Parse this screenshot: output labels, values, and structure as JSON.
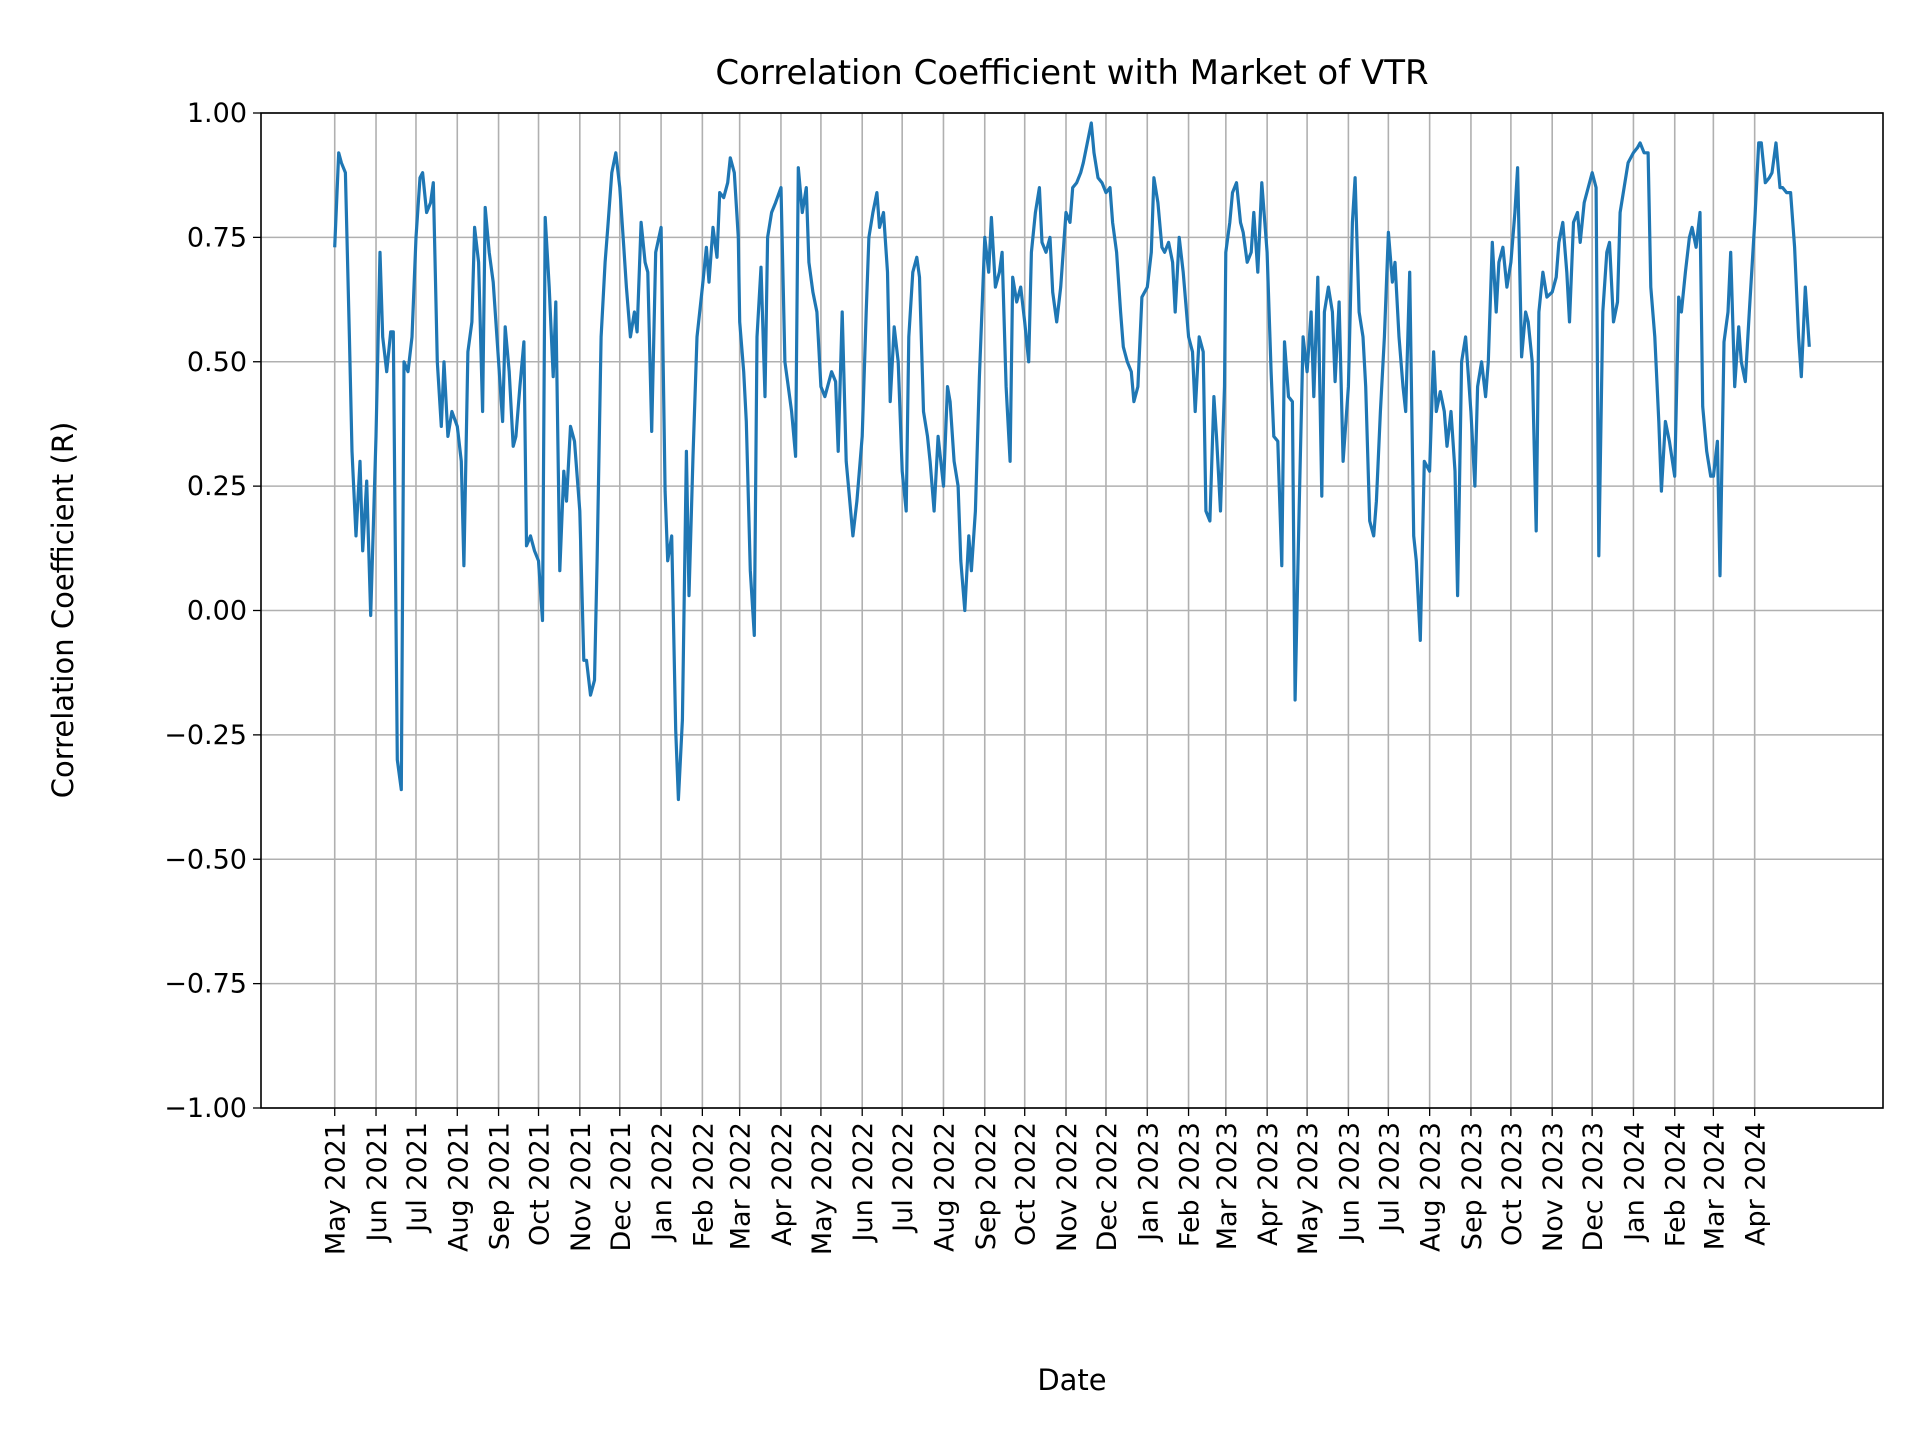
{
  "chart_data": {
    "type": "line",
    "title": "Correlation Coefficient with Market of VTR",
    "xlabel": "Date",
    "ylabel": "Correlation Coefficient (R)",
    "ylim": [
      -1.0,
      1.0
    ],
    "grid": true,
    "line_color": "#1f77b4",
    "y_ticks": [
      -1.0,
      -0.75,
      -0.5,
      -0.25,
      0.0,
      0.25,
      0.5,
      0.75,
      1.0
    ],
    "y_tick_labels": [
      "−1.00",
      "−0.75",
      "−0.50",
      "−0.25",
      "0.00",
      "0.25",
      "0.50",
      "0.75",
      "1.00"
    ],
    "x_ticks": [
      "2021-05-01",
      "2021-06-01",
      "2021-07-01",
      "2021-08-01",
      "2021-09-01",
      "2021-10-01",
      "2021-11-01",
      "2021-12-01",
      "2022-01-01",
      "2022-02-01",
      "2022-03-01",
      "2022-04-01",
      "2022-05-01",
      "2022-06-01",
      "2022-07-01",
      "2022-08-01",
      "2022-09-01",
      "2022-10-01",
      "2022-11-01",
      "2022-12-01",
      "2023-01-01",
      "2023-02-01",
      "2023-03-01",
      "2023-04-01",
      "2023-05-01",
      "2023-06-01",
      "2023-07-01",
      "2023-08-01",
      "2023-09-01",
      "2023-10-01",
      "2023-11-01",
      "2023-12-01",
      "2024-01-01",
      "2024-02-01",
      "2024-03-01",
      "2024-04-01"
    ],
    "x_tick_labels": [
      "May 2021",
      "Jun 2021",
      "Jul 2021",
      "Aug 2021",
      "Sep 2021",
      "Oct 2021",
      "Nov 2021",
      "Dec 2021",
      "Jan 2022",
      "Feb 2022",
      "Mar 2022",
      "Apr 2022",
      "May 2022",
      "Jun 2022",
      "Jul 2022",
      "Aug 2022",
      "Sep 2022",
      "Oct 2022",
      "Nov 2022",
      "Dec 2022",
      "Jan 2023",
      "Feb 2023",
      "Mar 2023",
      "Apr 2023",
      "May 2023",
      "Jun 2023",
      "Jul 2023",
      "Aug 2023",
      "Sep 2023",
      "Oct 2023",
      "Nov 2023",
      "Dec 2023",
      "Jan 2024",
      "Feb 2024",
      "Mar 2024",
      "Apr 2024"
    ],
    "series": [
      {
        "x": [
          "2021-05-01",
          "2021-05-04",
          "2021-05-06",
          "2021-05-09",
          "2021-05-12",
          "2021-05-14",
          "2021-05-17",
          "2021-05-20",
          "2021-05-22",
          "2021-05-25",
          "2021-05-28",
          "2021-06-01",
          "2021-06-04",
          "2021-06-06",
          "2021-06-09",
          "2021-06-12",
          "2021-06-14",
          "2021-06-17",
          "2021-06-20",
          "2021-06-22",
          "2021-06-25",
          "2021-06-28",
          "2021-07-01",
          "2021-07-04",
          "2021-07-06",
          "2021-07-09",
          "2021-07-12",
          "2021-07-14",
          "2021-07-17",
          "2021-07-20",
          "2021-07-22",
          "2021-07-25",
          "2021-07-28",
          "2021-08-01",
          "2021-08-04",
          "2021-08-06",
          "2021-08-09",
          "2021-08-12",
          "2021-08-14",
          "2021-08-17",
          "2021-08-20",
          "2021-08-22",
          "2021-08-25",
          "2021-08-28",
          "2021-09-01",
          "2021-09-04",
          "2021-09-06",
          "2021-09-09",
          "2021-09-12",
          "2021-09-14",
          "2021-09-17",
          "2021-09-20",
          "2021-09-22",
          "2021-09-25",
          "2021-09-28",
          "2021-10-01",
          "2021-10-04",
          "2021-10-06",
          "2021-10-09",
          "2021-10-12",
          "2021-10-14",
          "2021-10-17",
          "2021-10-20",
          "2021-10-22",
          "2021-10-25",
          "2021-10-28",
          "2021-11-01",
          "2021-11-04",
          "2021-11-06",
          "2021-11-09",
          "2021-11-12",
          "2021-11-14",
          "2021-11-17",
          "2021-11-20",
          "2021-11-22",
          "2021-11-25",
          "2021-11-28",
          "2021-12-01",
          "2021-12-04",
          "2021-12-06",
          "2021-12-09",
          "2021-12-12",
          "2021-12-14",
          "2021-12-17",
          "2021-12-20",
          "2021-12-22",
          "2021-12-25",
          "2021-12-28",
          "2022-01-01",
          "2022-01-04",
          "2022-01-06",
          "2022-01-09",
          "2022-01-12",
          "2022-01-14",
          "2022-01-17",
          "2022-01-20",
          "2022-01-22",
          "2022-01-25",
          "2022-01-28",
          "2022-02-01",
          "2022-02-04",
          "2022-02-06",
          "2022-02-09",
          "2022-02-12",
          "2022-02-14",
          "2022-02-17",
          "2022-02-20",
          "2022-02-22",
          "2022-02-25",
          "2022-02-28",
          "2022-03-01",
          "2022-03-04",
          "2022-03-06",
          "2022-03-09",
          "2022-03-12",
          "2022-03-14",
          "2022-03-17",
          "2022-03-20",
          "2022-03-22",
          "2022-03-25",
          "2022-03-28",
          "2022-04-01",
          "2022-04-04",
          "2022-04-06",
          "2022-04-09",
          "2022-04-12",
          "2022-04-14",
          "2022-04-17",
          "2022-04-20",
          "2022-04-22",
          "2022-04-25",
          "2022-04-28",
          "2022-05-01",
          "2022-05-04",
          "2022-05-06",
          "2022-05-09",
          "2022-05-12",
          "2022-05-14",
          "2022-05-17",
          "2022-05-20",
          "2022-05-22",
          "2022-05-25",
          "2022-05-28",
          "2022-06-01",
          "2022-06-04",
          "2022-06-06",
          "2022-06-09",
          "2022-06-12",
          "2022-06-14",
          "2022-06-17",
          "2022-06-20",
          "2022-06-22",
          "2022-06-25",
          "2022-06-28",
          "2022-07-01",
          "2022-07-04",
          "2022-07-06",
          "2022-07-09",
          "2022-07-12",
          "2022-07-14",
          "2022-07-17",
          "2022-07-20",
          "2022-07-22",
          "2022-07-25",
          "2022-07-28",
          "2022-08-01",
          "2022-08-04",
          "2022-08-06",
          "2022-08-09",
          "2022-08-12",
          "2022-08-14",
          "2022-08-17",
          "2022-08-20",
          "2022-08-22",
          "2022-08-25",
          "2022-08-28",
          "2022-09-01",
          "2022-09-04",
          "2022-09-06",
          "2022-09-09",
          "2022-09-12",
          "2022-09-14",
          "2022-09-17",
          "2022-09-20",
          "2022-09-22",
          "2022-09-25",
          "2022-09-28",
          "2022-10-01",
          "2022-10-04",
          "2022-10-06",
          "2022-10-09",
          "2022-10-12",
          "2022-10-14",
          "2022-10-17",
          "2022-10-20",
          "2022-10-22",
          "2022-10-25",
          "2022-10-28",
          "2022-11-01",
          "2022-11-04",
          "2022-11-06",
          "2022-11-09",
          "2022-11-12",
          "2022-11-14",
          "2022-11-17",
          "2022-11-20",
          "2022-11-22",
          "2022-11-25",
          "2022-11-28",
          "2022-12-01",
          "2022-12-04",
          "2022-12-06",
          "2022-12-09",
          "2022-12-12",
          "2022-12-14",
          "2022-12-17",
          "2022-12-20",
          "2022-12-22",
          "2022-12-25",
          "2022-12-28",
          "2023-01-01",
          "2023-01-04",
          "2023-01-06",
          "2023-01-09",
          "2023-01-12",
          "2023-01-14",
          "2023-01-17",
          "2023-01-20",
          "2023-01-22",
          "2023-01-25",
          "2023-01-28",
          "2023-02-01",
          "2023-02-04",
          "2023-02-06",
          "2023-02-09",
          "2023-02-12",
          "2023-02-14",
          "2023-02-17",
          "2023-02-20",
          "2023-02-22",
          "2023-02-25",
          "2023-02-28",
          "2023-03-01",
          "2023-03-04",
          "2023-03-06",
          "2023-03-09",
          "2023-03-12",
          "2023-03-14",
          "2023-03-17",
          "2023-03-20",
          "2023-03-22",
          "2023-03-25",
          "2023-03-28",
          "2023-04-01",
          "2023-04-04",
          "2023-04-06",
          "2023-04-09",
          "2023-04-12",
          "2023-04-14",
          "2023-04-17",
          "2023-04-20",
          "2023-04-22",
          "2023-04-25",
          "2023-04-28",
          "2023-05-01",
          "2023-05-04",
          "2023-05-06",
          "2023-05-09",
          "2023-05-12",
          "2023-05-14",
          "2023-05-17",
          "2023-05-20",
          "2023-05-22",
          "2023-05-25",
          "2023-05-28",
          "2023-06-01",
          "2023-06-04",
          "2023-06-06",
          "2023-06-09",
          "2023-06-12",
          "2023-06-14",
          "2023-06-17",
          "2023-06-20",
          "2023-06-22",
          "2023-06-25",
          "2023-06-28",
          "2023-07-01",
          "2023-07-04",
          "2023-07-06",
          "2023-07-09",
          "2023-07-12",
          "2023-07-14",
          "2023-07-17",
          "2023-07-20",
          "2023-07-22",
          "2023-07-25",
          "2023-07-28",
          "2023-08-01",
          "2023-08-04",
          "2023-08-06",
          "2023-08-09",
          "2023-08-12",
          "2023-08-14",
          "2023-08-17",
          "2023-08-20",
          "2023-08-22",
          "2023-08-25",
          "2023-08-28",
          "2023-09-01",
          "2023-09-04",
          "2023-09-06",
          "2023-09-09",
          "2023-09-12",
          "2023-09-14",
          "2023-09-17",
          "2023-09-20",
          "2023-09-22",
          "2023-09-25",
          "2023-09-28",
          "2023-10-01",
          "2023-10-04",
          "2023-10-06",
          "2023-10-09",
          "2023-10-12",
          "2023-10-14",
          "2023-10-17",
          "2023-10-20",
          "2023-10-22",
          "2023-10-25",
          "2023-10-28",
          "2023-11-01",
          "2023-11-04",
          "2023-11-06",
          "2023-11-09",
          "2023-11-12",
          "2023-11-14",
          "2023-11-17",
          "2023-11-20",
          "2023-11-22",
          "2023-11-25",
          "2023-11-28",
          "2023-12-01",
          "2023-12-04",
          "2023-12-06",
          "2023-12-09",
          "2023-12-12",
          "2023-12-14",
          "2023-12-17",
          "2023-12-20",
          "2023-12-22",
          "2023-12-25",
          "2023-12-28",
          "2024-01-01",
          "2024-01-04",
          "2024-01-06",
          "2024-01-09",
          "2024-01-12",
          "2024-01-14",
          "2024-01-17",
          "2024-01-20",
          "2024-01-22",
          "2024-01-25",
          "2024-01-28",
          "2024-02-01",
          "2024-02-04",
          "2024-02-06",
          "2024-02-09",
          "2024-02-12",
          "2024-02-14",
          "2024-02-17",
          "2024-02-20",
          "2024-02-22",
          "2024-02-25",
          "2024-02-28",
          "2024-03-01",
          "2024-03-04",
          "2024-03-06",
          "2024-03-09",
          "2024-03-12",
          "2024-03-14",
          "2024-03-17",
          "2024-03-20",
          "2024-03-22",
          "2024-03-25",
          "2024-03-28",
          "2024-04-01",
          "2024-04-04",
          "2024-04-06",
          "2024-04-09",
          "2024-04-12",
          "2024-04-14",
          "2024-04-17",
          "2024-04-20",
          "2024-04-22",
          "2024-04-25",
          "2024-04-28",
          "2024-05-01",
          "2024-05-04",
          "2024-05-06",
          "2024-05-09",
          "2024-05-12"
        ],
        "y": [
          0.73,
          0.92,
          0.9,
          0.88,
          0.55,
          0.32,
          0.15,
          0.3,
          0.12,
          0.26,
          -0.01,
          0.35,
          0.72,
          0.55,
          0.48,
          0.56,
          0.56,
          -0.3,
          -0.36,
          0.5,
          0.48,
          0.55,
          0.75,
          0.87,
          0.88,
          0.8,
          0.82,
          0.86,
          0.5,
          0.37,
          0.5,
          0.35,
          0.4,
          0.37,
          0.3,
          0.09,
          0.52,
          0.58,
          0.77,
          0.7,
          0.4,
          0.81,
          0.72,
          0.66,
          0.5,
          0.38,
          0.57,
          0.48,
          0.33,
          0.35,
          0.45,
          0.54,
          0.13,
          0.15,
          0.12,
          0.1,
          -0.02,
          0.79,
          0.65,
          0.47,
          0.62,
          0.08,
          0.28,
          0.22,
          0.37,
          0.34,
          0.2,
          -0.1,
          -0.1,
          -0.17,
          -0.14,
          0.1,
          0.55,
          0.7,
          0.77,
          0.88,
          0.92,
          0.85,
          0.73,
          0.65,
          0.55,
          0.6,
          0.56,
          0.78,
          0.7,
          0.68,
          0.36,
          0.72,
          0.77,
          0.24,
          0.1,
          0.15,
          -0.24,
          -0.38,
          -0.22,
          0.32,
          0.03,
          0.31,
          0.55,
          0.65,
          0.73,
          0.66,
          0.77,
          0.71,
          0.84,
          0.83,
          0.86,
          0.91,
          0.88,
          0.75,
          0.58,
          0.48,
          0.38,
          0.08,
          -0.05,
          0.55,
          0.69,
          0.43,
          0.75,
          0.8,
          0.82,
          0.85,
          0.5,
          0.46,
          0.4,
          0.31,
          0.89,
          0.8,
          0.85,
          0.7,
          0.64,
          0.6,
          0.45,
          0.43,
          0.45,
          0.48,
          0.46,
          0.32,
          0.6,
          0.3,
          0.24,
          0.15,
          0.22,
          0.35,
          0.6,
          0.75,
          0.8,
          0.84,
          0.77,
          0.8,
          0.68,
          0.42,
          0.57,
          0.5,
          0.28,
          0.2,
          0.55,
          0.68,
          0.71,
          0.67,
          0.4,
          0.35,
          0.3,
          0.2,
          0.35,
          0.25,
          0.45,
          0.42,
          0.3,
          0.25,
          0.1,
          0.0,
          0.15,
          0.08,
          0.2,
          0.47,
          0.75,
          0.68,
          0.79,
          0.65,
          0.68,
          0.72,
          0.45,
          0.3,
          0.67,
          0.62,
          0.65,
          0.58,
          0.5,
          0.72,
          0.8,
          0.85,
          0.74,
          0.72,
          0.75,
          0.64,
          0.58,
          0.65,
          0.8,
          0.78,
          0.85,
          0.86,
          0.88,
          0.9,
          0.94,
          0.98,
          0.92,
          0.87,
          0.86,
          0.84,
          0.85,
          0.78,
          0.72,
          0.6,
          0.53,
          0.5,
          0.48,
          0.42,
          0.45,
          0.63,
          0.65,
          0.72,
          0.87,
          0.82,
          0.73,
          0.72,
          0.74,
          0.7,
          0.6,
          0.75,
          0.68,
          0.55,
          0.52,
          0.4,
          0.55,
          0.52,
          0.2,
          0.18,
          0.43,
          0.35,
          0.2,
          0.45,
          0.72,
          0.78,
          0.84,
          0.86,
          0.78,
          0.76,
          0.7,
          0.72,
          0.8,
          0.68,
          0.86,
          0.72,
          0.48,
          0.35,
          0.34,
          0.09,
          0.54,
          0.43,
          0.42,
          -0.18,
          0.2,
          0.55,
          0.48,
          0.6,
          0.43,
          0.67,
          0.23,
          0.6,
          0.65,
          0.6,
          0.46,
          0.62,
          0.3,
          0.45,
          0.78,
          0.87,
          0.6,
          0.55,
          0.45,
          0.18,
          0.15,
          0.22,
          0.4,
          0.55,
          0.76,
          0.66,
          0.7,
          0.55,
          0.45,
          0.4,
          0.68,
          0.15,
          0.1,
          -0.06,
          0.3,
          0.28,
          0.52,
          0.4,
          0.44,
          0.4,
          0.33,
          0.4,
          0.28,
          0.03,
          0.5,
          0.55,
          0.4,
          0.25,
          0.45,
          0.5,
          0.43,
          0.5,
          0.74,
          0.6,
          0.7,
          0.73,
          0.65,
          0.7,
          0.8,
          0.89,
          0.51,
          0.6,
          0.58,
          0.5,
          0.16,
          0.6,
          0.68,
          0.63,
          0.64,
          0.67,
          0.74,
          0.78,
          0.68,
          0.58,
          0.78,
          0.8,
          0.74,
          0.82,
          0.85,
          0.88,
          0.85,
          0.11,
          0.6,
          0.72,
          0.74,
          0.58,
          0.62,
          0.8,
          0.85,
          0.9,
          0.92,
          0.93,
          0.94,
          0.92,
          0.92,
          0.65,
          0.55,
          0.38,
          0.24,
          0.38,
          0.34,
          0.27,
          0.63,
          0.6,
          0.68,
          0.75,
          0.77,
          0.73,
          0.8,
          0.41,
          0.32,
          0.27,
          0.27,
          0.34,
          0.07,
          0.54,
          0.6,
          0.72,
          0.45,
          0.57,
          0.5,
          0.46,
          0.6,
          0.78,
          0.94,
          0.94,
          0.86,
          0.87,
          0.88,
          0.94,
          0.85,
          0.85,
          0.84,
          0.84,
          0.73,
          0.55,
          0.47,
          0.65,
          0.53
        ]
      }
    ]
  }
}
